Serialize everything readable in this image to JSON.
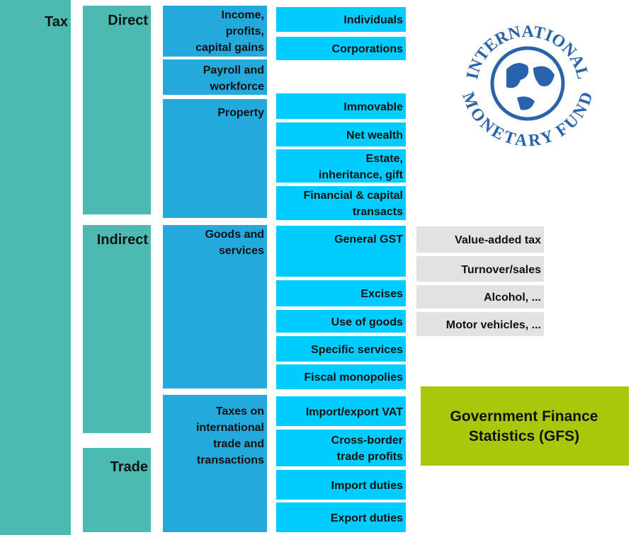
{
  "tax": "Tax",
  "groups": [
    {
      "label": "Direct"
    },
    {
      "label": "Indirect"
    },
    {
      "label": "Trade"
    }
  ],
  "categories": [
    {
      "lines": [
        "Income,",
        "profits,",
        "capital gains"
      ]
    },
    {
      "lines": [
        "Payroll and",
        "workforce"
      ]
    },
    {
      "lines": [
        "Property"
      ]
    },
    {
      "lines": [
        "Goods and",
        "services"
      ]
    },
    {
      "lines": [
        "Taxes on",
        "international",
        "trade and",
        "transactions"
      ]
    }
  ],
  "subcategories": [
    {
      "lines": [
        "Individuals"
      ]
    },
    {
      "lines": [
        "Corporations"
      ]
    },
    {
      "lines": [
        "Immovable"
      ]
    },
    {
      "lines": [
        "Net wealth"
      ]
    },
    {
      "lines": [
        "Estate,",
        "inheritance, gift"
      ]
    },
    {
      "lines": [
        "Financial & capital",
        "transacts"
      ]
    },
    {
      "lines": [
        "General GST"
      ]
    },
    {
      "lines": [
        "Excises"
      ]
    },
    {
      "lines": [
        "Use of goods"
      ]
    },
    {
      "lines": [
        "Specific services"
      ]
    },
    {
      "lines": [
        "Fiscal monopolies"
      ]
    },
    {
      "lines": [
        "Import/export VAT"
      ]
    },
    {
      "lines": [
        "Cross-border",
        "trade profits"
      ]
    },
    {
      "lines": [
        "Import duties"
      ]
    },
    {
      "lines": [
        "Export duties"
      ]
    }
  ],
  "examples": [
    "Value-added tax",
    "Turnover/sales",
    "Alcohol, ...",
    "Motor vehicles, ..."
  ],
  "source": {
    "lines": [
      "Government Finance",
      "Statistics (GFS)"
    ]
  },
  "logo": {
    "top": "INTERNATIONAL",
    "bottom": "MONETARY FUND"
  }
}
